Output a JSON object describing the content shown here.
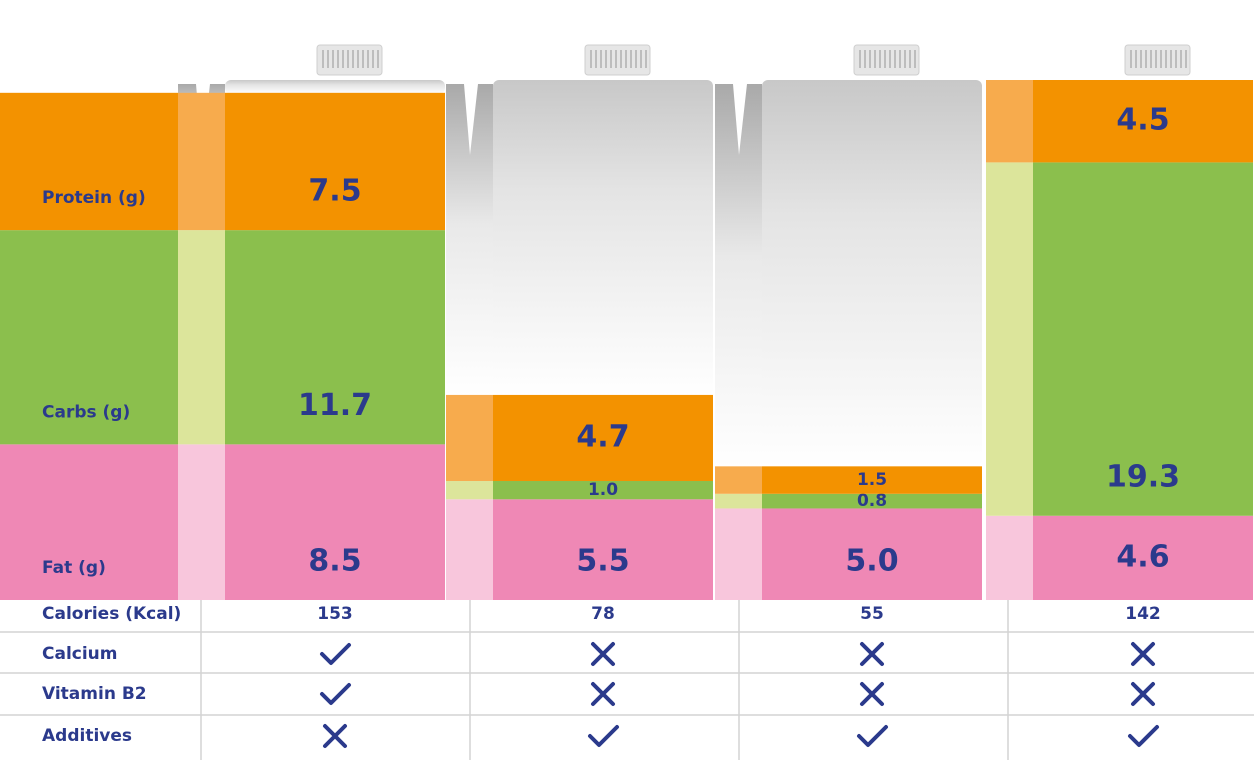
{
  "chart_data": {
    "type": "bar",
    "stacked": true,
    "categories": [
      null,
      null,
      null,
      null
    ],
    "series": [
      {
        "name": "Fat (g)",
        "color": "#ef88b5",
        "side_color": "#f8c6dc",
        "values": [
          8.5,
          5.5,
          5.0,
          4.6
        ],
        "value_labels": [
          "8.5",
          "5.5",
          "5.0",
          "4.6"
        ]
      },
      {
        "name": "Carbs (g)",
        "color": "#8bbf4d",
        "side_color": "#dce59b",
        "values": [
          11.7,
          1.0,
          0.8,
          19.3
        ],
        "value_labels": [
          "11.7",
          "1.0",
          "0.8",
          "19.3"
        ]
      },
      {
        "name": "Protein (g)",
        "color": "#f39200",
        "side_color": "#f7ab4d",
        "values": [
          7.5,
          4.7,
          1.5,
          4.5
        ],
        "value_labels": [
          "7.5",
          "4.7",
          "1.5",
          "4.5"
        ]
      }
    ]
  },
  "table": {
    "rows": [
      {
        "label": "Calories (Kcal)",
        "values": [
          153,
          78,
          55,
          142
        ]
      },
      {
        "label": "Calcium",
        "values": [
          true,
          false,
          false,
          false
        ]
      },
      {
        "label": "Vitamin B2",
        "values": [
          true,
          false,
          false,
          false
        ]
      },
      {
        "label": "Additives",
        "values": [
          false,
          true,
          true,
          true
        ]
      }
    ]
  }
}
